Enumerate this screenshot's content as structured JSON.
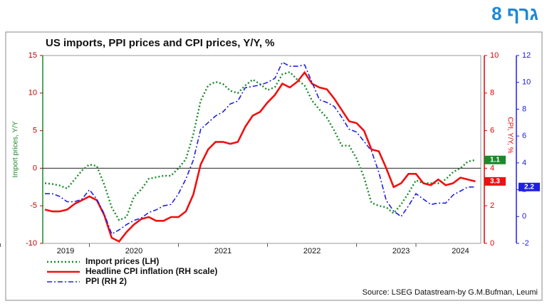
{
  "header": "גרף 8",
  "chart_data": {
    "type": "line",
    "title": "US  imports, PPI prices and CPI prices, Y/Y, %",
    "ylabel": "Import prices, Y/Y",
    "y2label": "CPI, Y/Y, %",
    "source": "Source: LSEG Datastream-by G.M.Bufman, Leumi",
    "categories": [
      "2019",
      null,
      null,
      null,
      null,
      null,
      null,
      null,
      null,
      null,
      null,
      null,
      "2020",
      null,
      null,
      null,
      null,
      null,
      null,
      null,
      null,
      null,
      null,
      null,
      "2021",
      null,
      null,
      null,
      null,
      null,
      null,
      null,
      null,
      null,
      null,
      null,
      "2022",
      null,
      null,
      null,
      null,
      null,
      null,
      null,
      null,
      null,
      null,
      null,
      "2023",
      null,
      null,
      null,
      null,
      null,
      null,
      null,
      "2024",
      null,
      null
    ],
    "ylim": [
      -10,
      15
    ],
    "yticks": [
      -10,
      -5,
      0,
      5,
      10,
      15
    ],
    "ycolor": "#c00000",
    "yaxiscolor": "#1a8a2a",
    "y2lim": [
      0,
      10
    ],
    "y2ticks": [
      0,
      2,
      4,
      6,
      8,
      10
    ],
    "y2color": "#e00000",
    "y3lim": [
      -2,
      12
    ],
    "y3ticks": [
      -2,
      0,
      2,
      4,
      6,
      8,
      10,
      12
    ],
    "y3color": "#2020e0",
    "reference_line": 0,
    "grid": false,
    "series": [
      {
        "name": "Import prices (LH)",
        "color": "#1a8a2a",
        "dash": "dotted",
        "axis": "y",
        "end_label": "1.1",
        "values": [
          -2.0,
          -2.1,
          -2.3,
          -2.7,
          -1.5,
          -0.3,
          0.5,
          0.3,
          -2.2,
          -5.2,
          -6.9,
          -6.5,
          -3.8,
          -2.8,
          -1.4,
          -1.2,
          -1.0,
          -1.0,
          0.0,
          1.2,
          4.5,
          9.0,
          11.0,
          11.5,
          11.2,
          10.3,
          10.0,
          11.0,
          11.8,
          11.2,
          10.4,
          10.8,
          12.5,
          12.8,
          11.8,
          11.0,
          9.0,
          7.8,
          6.7,
          5.0,
          3.0,
          3.0,
          1.3,
          -1.2,
          -4.6,
          -5.0,
          -5.2,
          -6.0,
          -4.8,
          -3.3,
          -1.6,
          -2.0,
          -2.0,
          -2.0,
          -1.5,
          -0.5,
          0.0,
          0.9,
          1.1
        ]
      },
      {
        "name": "Headline CPI inflation (RH scale)",
        "color": "#ee1111",
        "dash": "solid",
        "axis": "y2",
        "end_label": "3.3",
        "values": [
          1.8,
          1.7,
          1.7,
          1.8,
          2.1,
          2.3,
          2.5,
          2.3,
          1.5,
          0.3,
          0.1,
          0.6,
          1.0,
          1.3,
          1.4,
          1.2,
          1.2,
          1.4,
          1.4,
          1.7,
          2.6,
          4.2,
          5.0,
          5.4,
          5.4,
          5.3,
          5.4,
          6.2,
          6.8,
          7.0,
          7.5,
          7.9,
          8.5,
          8.3,
          8.6,
          9.1,
          8.5,
          8.3,
          8.2,
          7.7,
          7.1,
          6.5,
          6.4,
          6.0,
          5.0,
          4.9,
          4.0,
          3.0,
          3.2,
          3.7,
          3.7,
          3.2,
          3.1,
          3.4,
          3.1,
          3.2,
          3.5,
          3.4,
          3.3
        ]
      },
      {
        "name": "PPI (RH 2)",
        "color": "#2020e0",
        "dash": "dashdot",
        "axis": "y3",
        "end_label": "2.2",
        "values": [
          1.7,
          1.7,
          1.5,
          1.1,
          1.1,
          1.3,
          2.0,
          1.3,
          0.2,
          -1.3,
          -1.0,
          -0.6,
          -0.3,
          -0.1,
          0.3,
          0.5,
          0.8,
          0.9,
          1.7,
          2.8,
          4.2,
          6.5,
          7.0,
          7.5,
          7.8,
          8.4,
          8.6,
          9.6,
          9.7,
          9.8,
          10.0,
          10.3,
          11.5,
          11.2,
          11.2,
          11.3,
          10.0,
          8.7,
          8.5,
          8.2,
          7.4,
          6.5,
          6.3,
          5.6,
          4.9,
          3.3,
          1.2,
          0.4,
          0.0,
          0.8,
          1.7,
          1.3,
          0.9,
          1.0,
          1.0,
          1.6,
          1.9,
          2.2,
          2.2
        ]
      }
    ]
  }
}
